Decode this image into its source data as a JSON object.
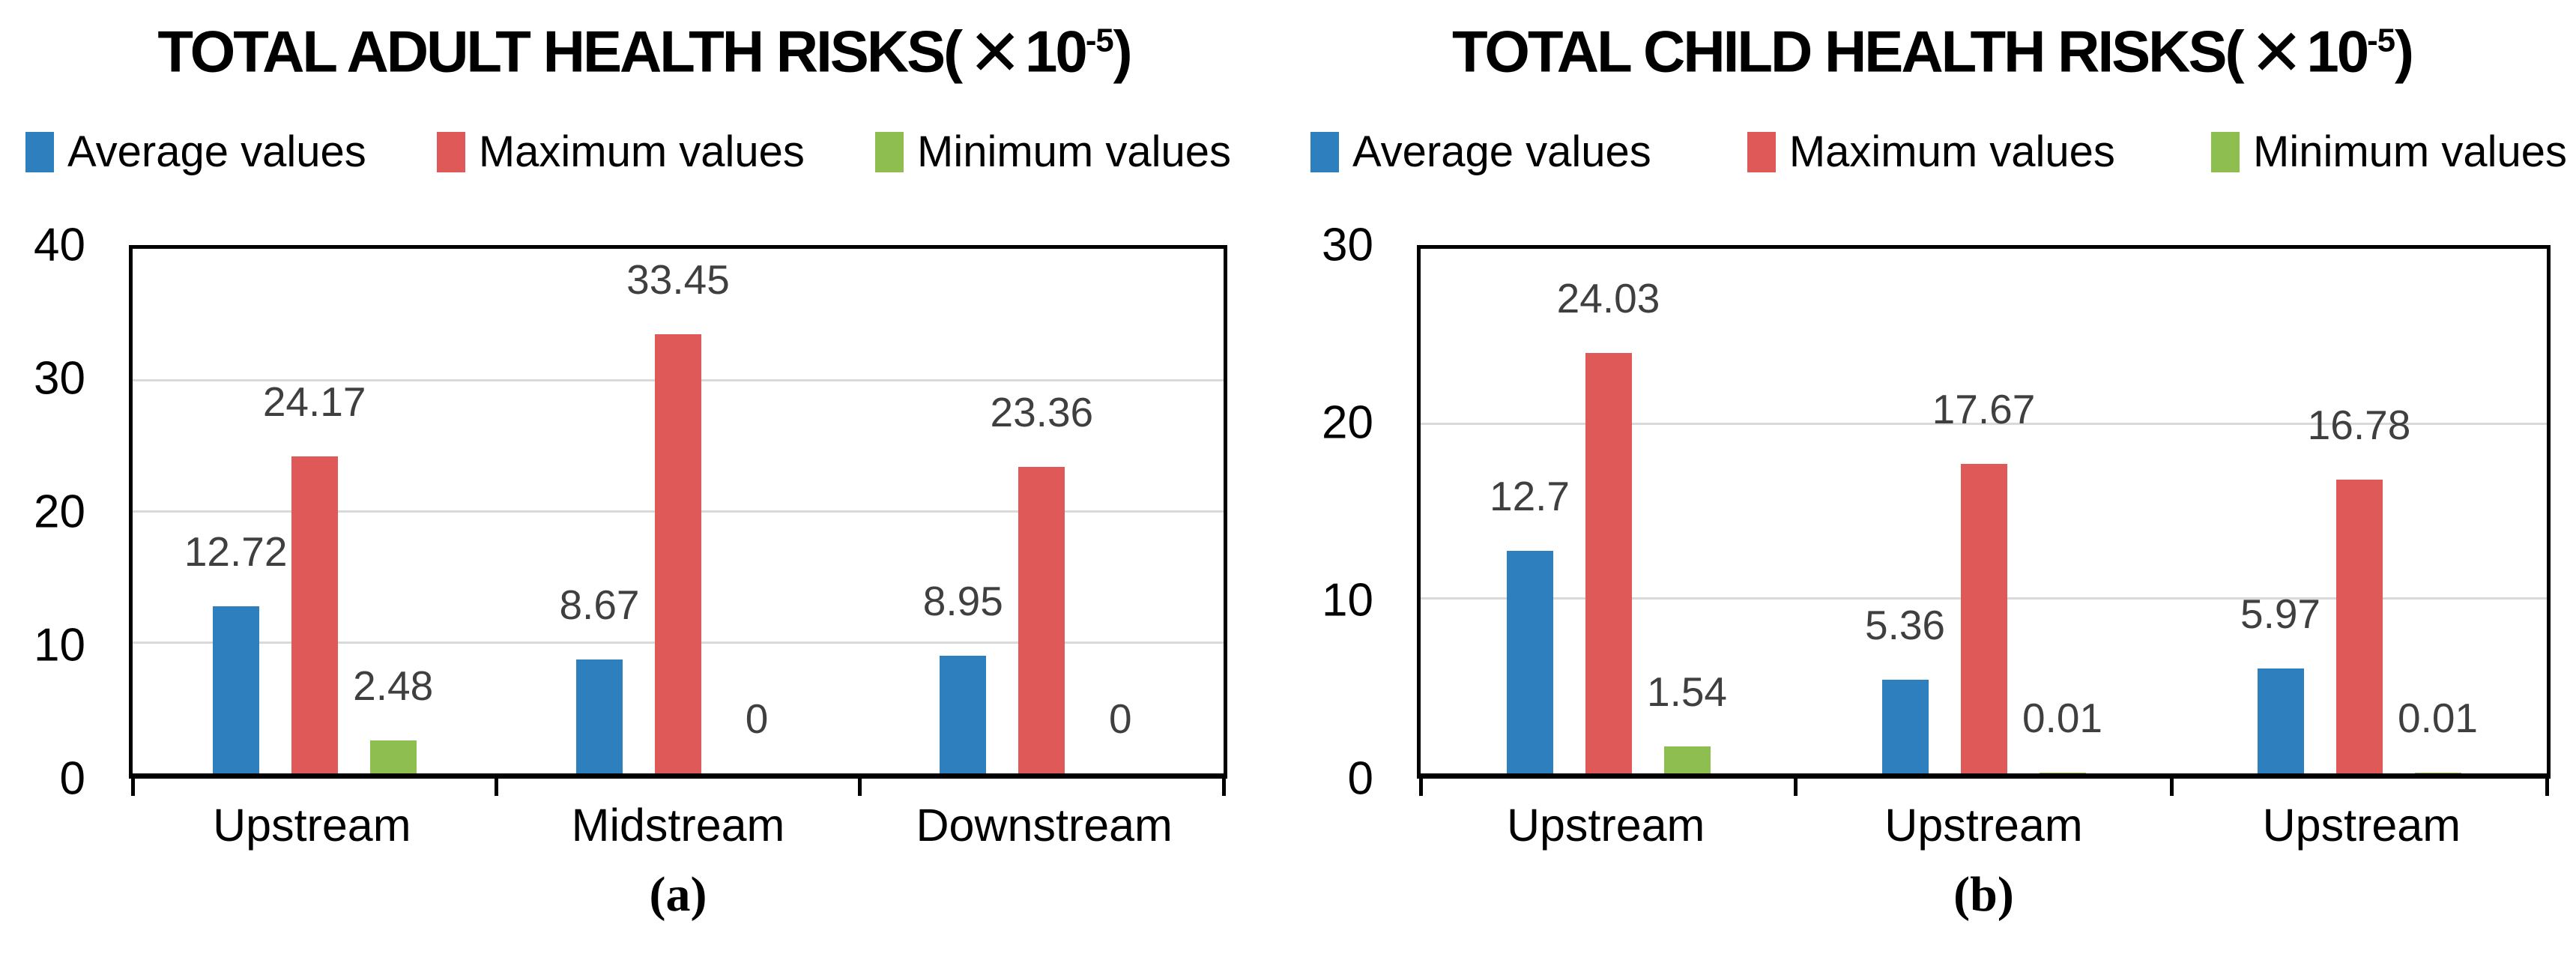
{
  "colors": {
    "average": "#2e7fbe",
    "maximum": "#de5957",
    "minimum": "#8ebe4f",
    "grid": "#d9d9d9",
    "axis": "#000000",
    "data_label": "#3f3f3f"
  },
  "chart_data": [
    {
      "type": "bar",
      "panel_label": "(a)",
      "title_parts": {
        "prefix": "TOTAL ADULT HEALTH RISKS(",
        "times": "✕",
        "base": "10",
        "exponent": "-5",
        "suffix": ")"
      },
      "categories": [
        "Upstream",
        "Midstream",
        "Downstream"
      ],
      "series": [
        {
          "name": "Average values",
          "color_key": "average",
          "values": [
            12.72,
            8.67,
            8.95
          ],
          "labels": [
            "12.72",
            "8.67",
            "8.95"
          ]
        },
        {
          "name": "Maximum values",
          "color_key": "maximum",
          "values": [
            24.17,
            33.45,
            23.36
          ],
          "labels": [
            "24.17",
            "33.45",
            "23.36"
          ]
        },
        {
          "name": "Minimum values",
          "color_key": "minimum",
          "values": [
            2.48,
            0,
            0
          ],
          "labels": [
            "2.48",
            "0",
            "0"
          ]
        }
      ],
      "ylim": [
        0,
        40
      ],
      "yticks": [
        "0",
        "10",
        "20",
        "30",
        "40"
      ],
      "grid": true,
      "legend_position": "top"
    },
    {
      "type": "bar",
      "panel_label": "(b)",
      "title_parts": {
        "prefix": "TOTAL CHILD HEALTH RISKS(",
        "times": "✕",
        "base": "10",
        "exponent": "-5",
        "suffix": ")"
      },
      "categories": [
        "Upstream",
        "Upstream",
        "Upstream"
      ],
      "series": [
        {
          "name": "Average values",
          "color_key": "average",
          "values": [
            12.7,
            5.36,
            5.97
          ],
          "labels": [
            "12.7",
            "5.36",
            "5.97"
          ]
        },
        {
          "name": "Maximum values",
          "color_key": "maximum",
          "values": [
            24.03,
            17.67,
            16.78
          ],
          "labels": [
            "24.03",
            "17.67",
            "16.78"
          ]
        },
        {
          "name": "Minimum values",
          "color_key": "minimum",
          "values": [
            1.54,
            0.01,
            0.01
          ],
          "labels": [
            "1.54",
            "0.01",
            "0.01"
          ]
        }
      ],
      "ylim": [
        0,
        30
      ],
      "yticks": [
        "0",
        "10",
        "20",
        "30"
      ],
      "grid": true,
      "legend_position": "top"
    }
  ]
}
